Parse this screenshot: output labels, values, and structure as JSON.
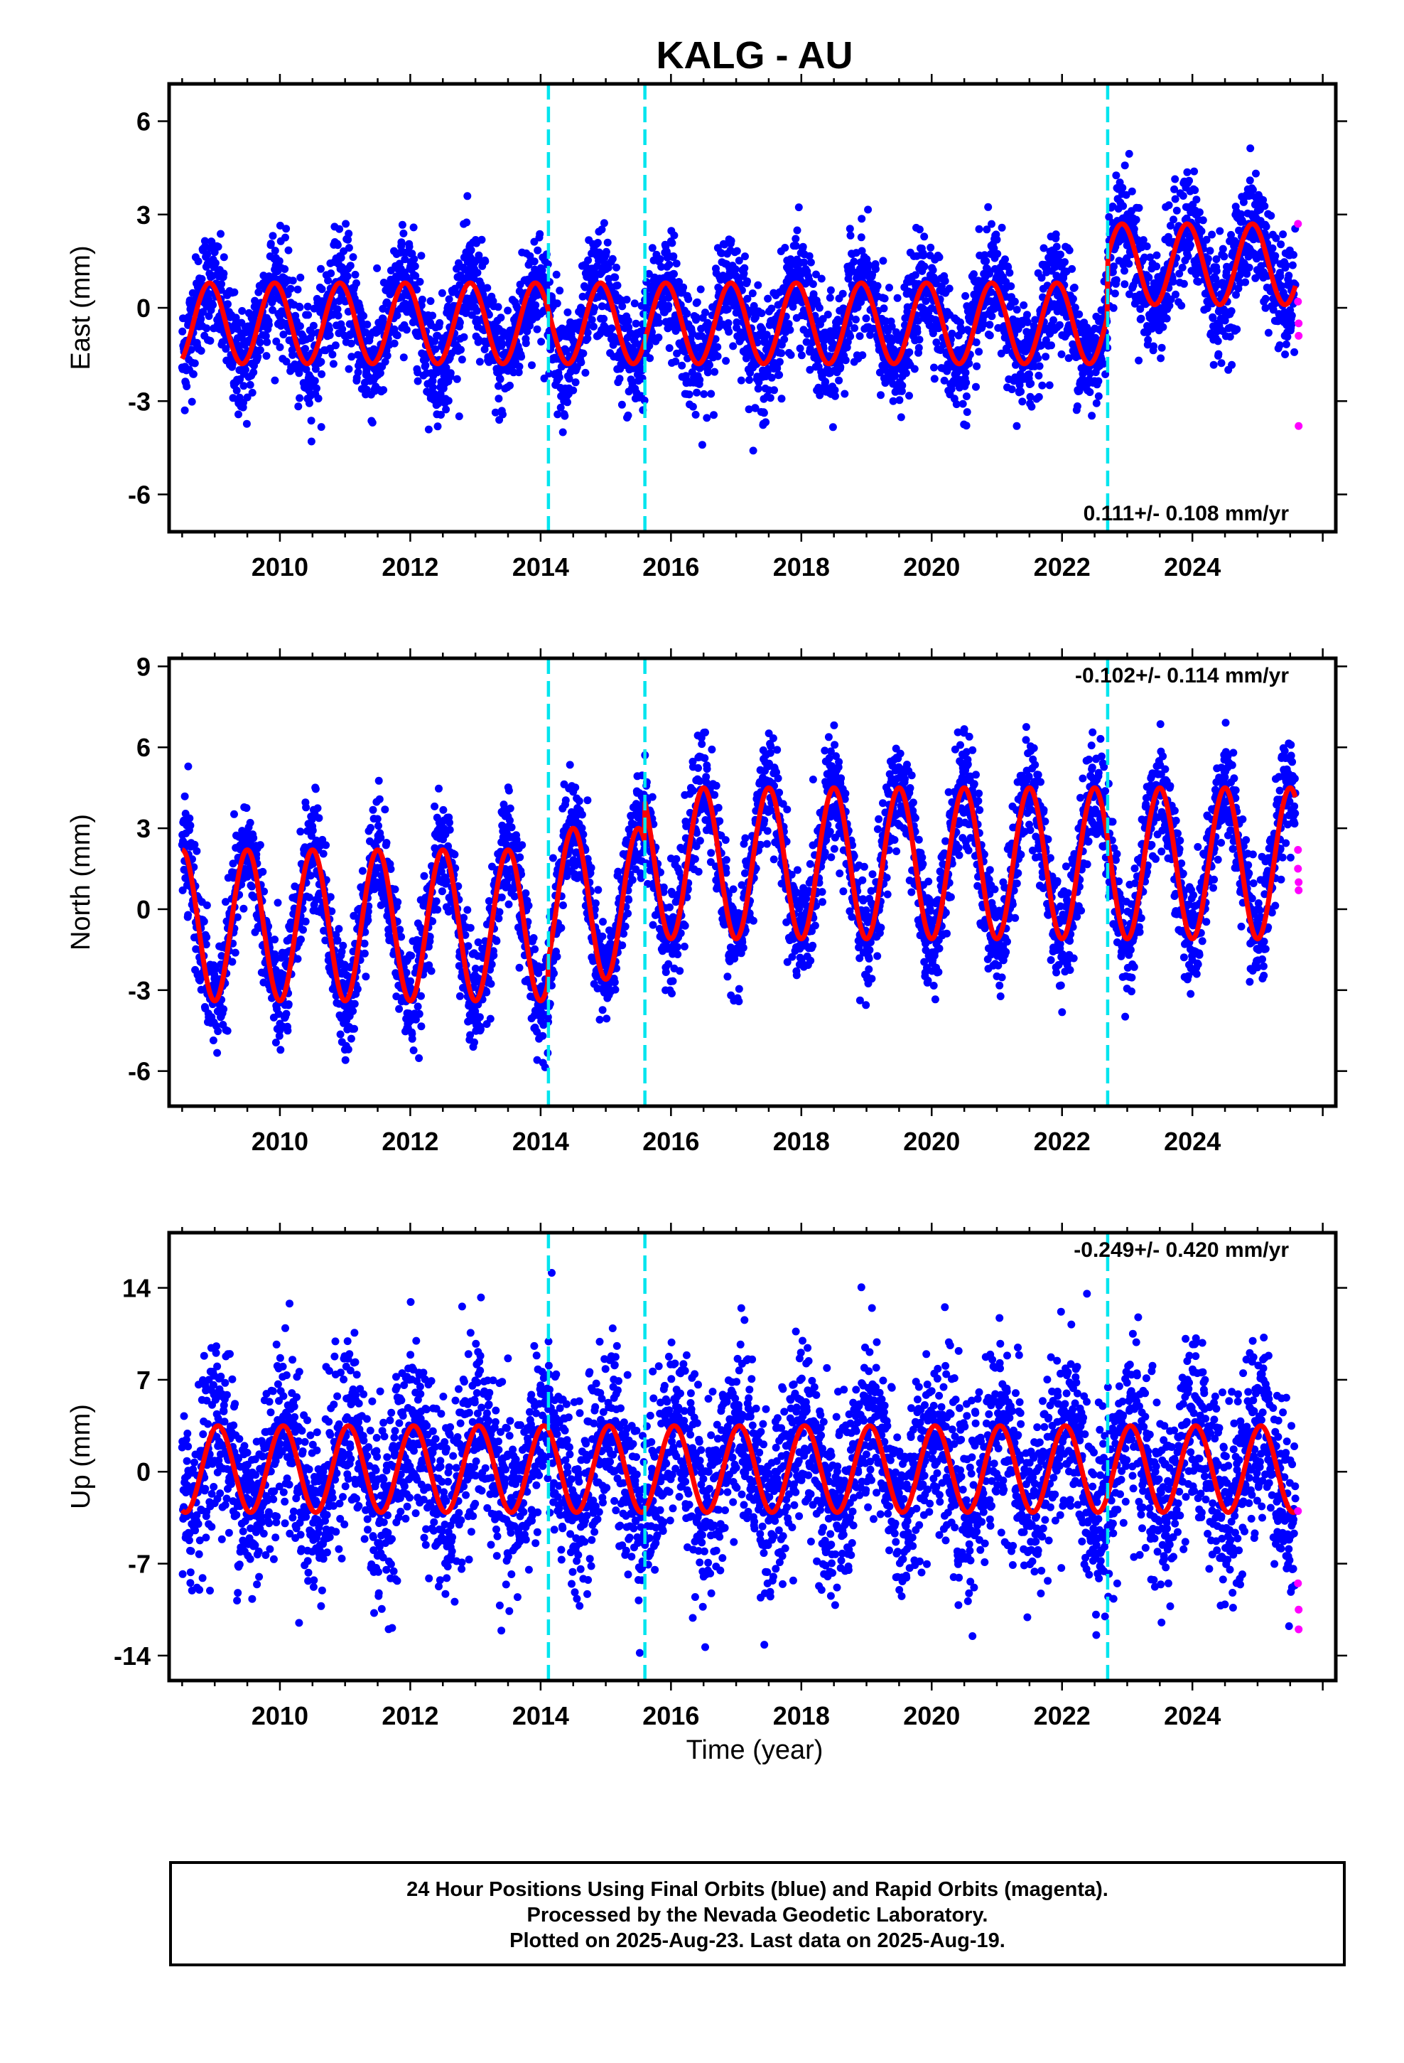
{
  "title": "KALG - AU",
  "colors": {
    "final_orbits": "#0000ff",
    "rapid_orbits": "#ff00ff",
    "model_fit": "#ff0000",
    "offset_lines": "#00e5ee",
    "frame": "#000000"
  },
  "xlabel": "Time (year)",
  "caption": {
    "line1": "24 Hour Positions Using Final Orbits (blue) and Rapid Orbits (magenta).",
    "line2": "Processed by the Nevada Geodetic Laboratory.",
    "line3": "Plotted on 2025-Aug-23. Last data on 2025-Aug-19."
  },
  "chart_data": [
    {
      "type": "scatter",
      "ylabel": "East (mm)",
      "rate_label": "0.111+/- 0.108 mm/yr",
      "rate_position": "bottom-right",
      "xlim": [
        2008.3,
        2026.2
      ],
      "ylim": [
        -7.2,
        7.2
      ],
      "xticks": [
        2010,
        2012,
        2014,
        2016,
        2018,
        2020,
        2022,
        2024
      ],
      "yticks": [
        -6,
        -3,
        0,
        3,
        6
      ],
      "ytick_labels": [
        "-6",
        "-3",
        "0",
        "3",
        "6"
      ],
      "offset_lines": [
        2014.12,
        2015.6,
        2022.7
      ],
      "data_span": [
        2008.5,
        2025.58
      ],
      "model": {
        "baseline_segments": [
          {
            "start": 2008.5,
            "end": 2022.7,
            "level": -0.5
          },
          {
            "start": 2022.7,
            "end": 2025.58,
            "level": 1.4
          }
        ],
        "annual_amplitude": 1.3,
        "peak_phase": 0.92,
        "scatter_sd": 0.9
      },
      "rapid_points": [
        {
          "x": 2025.62,
          "y": 2.7
        },
        {
          "x": 2025.62,
          "y": 0.2
        },
        {
          "x": 2025.63,
          "y": -0.5
        },
        {
          "x": 2025.63,
          "y": -0.9
        },
        {
          "x": 2025.63,
          "y": -3.8
        }
      ]
    },
    {
      "type": "scatter",
      "ylabel": "North (mm)",
      "rate_label": "-0.102+/- 0.114 mm/yr",
      "rate_position": "top-right",
      "xlim": [
        2008.3,
        2026.2
      ],
      "ylim": [
        -7.3,
        9.3
      ],
      "xticks": [
        2010,
        2012,
        2014,
        2016,
        2018,
        2020,
        2022,
        2024
      ],
      "yticks": [
        -6,
        -3,
        0,
        3,
        6,
        9
      ],
      "ytick_labels": [
        "-6",
        "-3",
        "0",
        "3",
        "6",
        "9"
      ],
      "offset_lines": [
        2014.12,
        2015.6,
        2022.7
      ],
      "data_span": [
        2008.5,
        2025.58
      ],
      "model": {
        "baseline_segments": [
          {
            "start": 2008.5,
            "end": 2014.12,
            "level": -0.6
          },
          {
            "start": 2014.12,
            "end": 2015.6,
            "level": 0.2
          },
          {
            "start": 2015.6,
            "end": 2025.58,
            "level": 1.7
          }
        ],
        "annual_amplitude": 2.8,
        "peak_phase": 0.5,
        "scatter_sd": 1.0
      },
      "rapid_points": [
        {
          "x": 2025.62,
          "y": 2.2
        },
        {
          "x": 2025.62,
          "y": 1.5
        },
        {
          "x": 2025.63,
          "y": 1.0
        },
        {
          "x": 2025.63,
          "y": 0.7
        }
      ]
    },
    {
      "type": "scatter",
      "ylabel": "Up (mm)",
      "rate_label": "-0.249+/- 0.420 mm/yr",
      "rate_position": "top-right",
      "xlim": [
        2008.3,
        2026.2
      ],
      "ylim": [
        -15.9,
        18.2
      ],
      "xticks": [
        2010,
        2012,
        2014,
        2016,
        2018,
        2020,
        2022,
        2024
      ],
      "yticks": [
        -14,
        -7,
        0,
        7,
        14
      ],
      "ytick_labels": [
        "-14",
        "-7",
        "0",
        "7",
        "14"
      ],
      "offset_lines": [
        2014.12,
        2015.6,
        2022.7
      ],
      "data_span": [
        2008.5,
        2025.58
      ],
      "model": {
        "baseline_segments": [
          {
            "start": 2008.5,
            "end": 2025.58,
            "level": 0.2
          }
        ],
        "annual_amplitude": 3.3,
        "peak_phase": 0.05,
        "scatter_sd": 3.5
      },
      "rapid_points": [
        {
          "x": 2025.62,
          "y": -3.0
        },
        {
          "x": 2025.62,
          "y": -8.5
        },
        {
          "x": 2025.63,
          "y": -10.5
        },
        {
          "x": 2025.63,
          "y": -12.0
        }
      ]
    }
  ]
}
